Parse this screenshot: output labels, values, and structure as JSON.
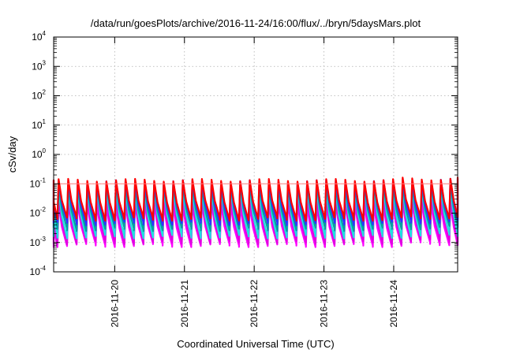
{
  "chart_data": {
    "type": "line",
    "title": "/data/run/goesPlots/archive/2016-11-24/16:00/flux/../bryn/5daysMars.plot",
    "xlabel": "Coordinated Universal Time (UTC)",
    "ylabel": "cSv/day",
    "yscale": "log",
    "ylim_exponents": [
      -4,
      4
    ],
    "y_tick_base": "10",
    "y_tick_exponents": [
      "-4",
      "-3",
      "-2",
      "-1",
      "0",
      "1",
      "2",
      "3",
      "4"
    ],
    "xlim": [
      "2016-11-19T03:00",
      "2016-11-24T22:00"
    ],
    "x_ticks": [
      "2016-11-20",
      "2016-11-21",
      "2016-11-22",
      "2016-11-23",
      "2016-11-24"
    ],
    "grid": true,
    "cycles_per_day": 7.3,
    "series": [
      {
        "color": "#ff0000",
        "peak_log": -0.88,
        "trough_log": -2.2
      },
      {
        "color": "#3030ff",
        "peak_log": -0.92,
        "trough_log": -2.35
      },
      {
        "color": "#00a0a0",
        "peak_log": -1.05,
        "trough_log": -2.55
      },
      {
        "color": "#20e0e0",
        "peak_log": -1.2,
        "trough_log": -2.8
      },
      {
        "color": "#e000e0",
        "peak_log": -1.45,
        "trough_log": -3.0
      },
      {
        "color": "#ff00ff",
        "peak_log": -1.7,
        "trough_log": -3.1
      }
    ],
    "reference_line": {
      "color": "#ff8080",
      "log_value": -1.0
    }
  }
}
